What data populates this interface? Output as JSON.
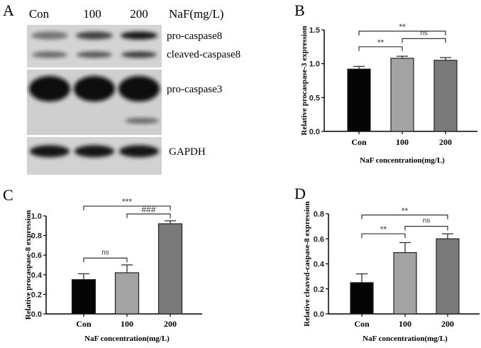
{
  "panel_a": {
    "letter": "A",
    "lane_labels": [
      "Con",
      "100",
      "200"
    ],
    "treatment_label": "NaF(mg/L)",
    "bands": [
      {
        "label": "pro-caspase8",
        "intensity": [
          0.45,
          0.7,
          0.95
        ]
      },
      {
        "label": "cleaved-caspase8",
        "intensity": [
          0.5,
          0.6,
          0.75
        ]
      },
      {
        "label": "pro-caspase3",
        "intensity": [
          1.0,
          1.0,
          1.0
        ]
      },
      {
        "label": "GAPDH",
        "intensity": [
          0.95,
          0.95,
          0.95
        ]
      }
    ]
  },
  "chart_data": [
    {
      "panel": "B",
      "type": "bar",
      "title": "",
      "categories": [
        "Con",
        "100",
        "200"
      ],
      "values": [
        0.92,
        1.08,
        1.05
      ],
      "errors": [
        0.04,
        0.03,
        0.04
      ],
      "colors": [
        "#050505",
        "#a3a3a3",
        "#7a7a7a"
      ],
      "ylabel": "Relative procaspase-3 expression",
      "xlabel": "NaF concentration(mg/L)",
      "ylim": [
        0,
        1.5
      ],
      "yticks": [
        "0.0",
        "0.5",
        "1.0",
        "1.5"
      ],
      "significance": [
        {
          "from": 0,
          "to": 2,
          "level": 1.48,
          "label": "**"
        },
        {
          "from": 1,
          "to": 2,
          "level": 1.37,
          "label": "ns"
        },
        {
          "from": 0,
          "to": 1,
          "level": 1.25,
          "label": "**"
        }
      ]
    },
    {
      "panel": "C",
      "type": "bar",
      "title": "",
      "categories": [
        "Con",
        "100",
        "200"
      ],
      "values": [
        0.35,
        0.42,
        0.92
      ],
      "errors": [
        0.06,
        0.08,
        0.03
      ],
      "colors": [
        "#050505",
        "#a3a3a3",
        "#7a7a7a"
      ],
      "ylabel": "Relative procaspase-8 expression",
      "xlabel": "NaF concentration(mg/L)",
      "ylim": [
        0,
        1.0
      ],
      "yticks": [
        "0.0",
        "0.2",
        "0.4",
        "0.6",
        "0.8",
        "1.0"
      ],
      "significance": [
        {
          "from": 0,
          "to": 2,
          "level": 1.1,
          "label": "***"
        },
        {
          "from": 1,
          "to": 2,
          "level": 1.02,
          "label": "###"
        },
        {
          "from": 0,
          "to": 1,
          "level": 0.57,
          "label": "ns"
        }
      ]
    },
    {
      "panel": "D",
      "type": "bar",
      "title": "",
      "categories": [
        "Con",
        "100",
        "200"
      ],
      "values": [
        0.25,
        0.49,
        0.6
      ],
      "errors": [
        0.07,
        0.08,
        0.04
      ],
      "colors": [
        "#050505",
        "#a3a3a3",
        "#7a7a7a"
      ],
      "ylabel": "Relative cleaved-caspase-8 expression",
      "xlabel": "NaF concentration(mg/L)",
      "ylim": [
        0,
        0.8
      ],
      "yticks": [
        "0.0",
        "0.2",
        "0.4",
        "0.6",
        "0.8"
      ],
      "significance": [
        {
          "from": 0,
          "to": 2,
          "level": 0.79,
          "label": "**"
        },
        {
          "from": 1,
          "to": 2,
          "level": 0.7,
          "label": "ns"
        },
        {
          "from": 0,
          "to": 1,
          "level": 0.64,
          "label": "**"
        }
      ]
    }
  ]
}
